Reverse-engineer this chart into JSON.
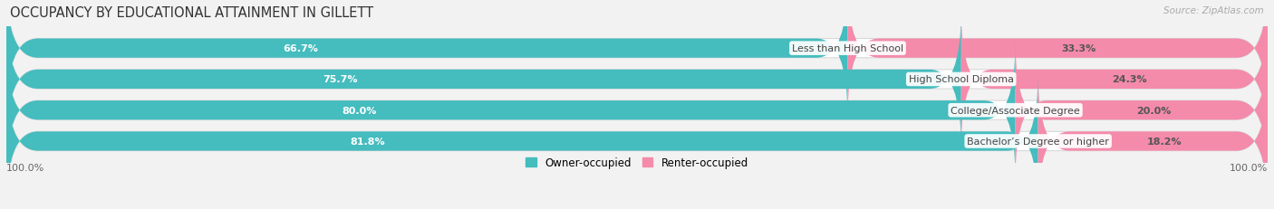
{
  "title": "OCCUPANCY BY EDUCATIONAL ATTAINMENT IN GILLETT",
  "source": "Source: ZipAtlas.com",
  "categories": [
    "Less than High School",
    "High School Diploma",
    "College/Associate Degree",
    "Bachelor’s Degree or higher"
  ],
  "owner_pct": [
    66.7,
    75.7,
    80.0,
    81.8
  ],
  "renter_pct": [
    33.3,
    24.3,
    20.0,
    18.2
  ],
  "owner_color": "#45BCBE",
  "renter_color": "#F48BAA",
  "bg_color": "#f2f2f2",
  "bar_bg_color": "#ffffff",
  "bar_shadow_color": "#d8d8d8",
  "title_fontsize": 10.5,
  "label_fontsize": 8,
  "pct_fontsize": 8,
  "bar_height": 0.62,
  "legend_label_owner": "Owner-occupied",
  "legend_label_renter": "Renter-occupied",
  "x_left_label": "100.0%",
  "x_right_label": "100.0%"
}
